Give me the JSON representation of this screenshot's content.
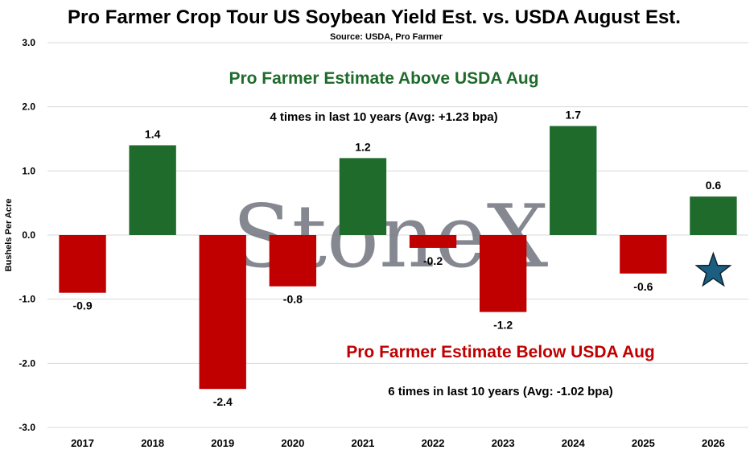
{
  "chart_data": {
    "type": "bar",
    "title": "Pro Farmer Crop Tour US Soybean Yield Est. vs. USDA August Est.",
    "subtitle": "Source: USDA, Pro Farmer",
    "ylabel": "Bushels Per Acre",
    "xlabel": "",
    "ylim": [
      -3.0,
      3.0
    ],
    "yticks": [
      3.0,
      2.0,
      1.0,
      0.0,
      -1.0,
      -2.0,
      -3.0
    ],
    "ytick_labels": [
      "3.0",
      "2.0",
      "1.0",
      "0.0",
      "-1.0",
      "-2.0",
      "-3.0"
    ],
    "grid": true,
    "categories": [
      "2017",
      "2018",
      "2019",
      "2020",
      "2021",
      "2022",
      "2023",
      "2024",
      "2025",
      "2026"
    ],
    "values": [
      -0.9,
      1.4,
      -2.4,
      -0.8,
      1.2,
      -0.2,
      -1.2,
      1.7,
      -0.6,
      0.6
    ],
    "data_labels": [
      "-0.9",
      "1.4",
      "-2.4",
      "-0.8",
      "1.2",
      "-0.2",
      "-1.2",
      "1.7",
      "-0.6",
      "0.6"
    ],
    "colors": {
      "positive": "#1e6b2b",
      "negative": "#c00000",
      "star": "#1b5e80"
    },
    "marker": {
      "category": "2026",
      "value": -0.5,
      "shape": "star-icon"
    },
    "annotations": {
      "above_heading": "Pro Farmer Estimate Above USDA Aug",
      "above_detail": "4 times in last 10 years  (Avg:  +1.23 bpa)",
      "below_heading": "Pro Farmer Estimate Below USDA Aug",
      "below_detail": "6 times in last 10 years (Avg: -1.02 bpa)"
    },
    "watermark": "StoneX"
  }
}
